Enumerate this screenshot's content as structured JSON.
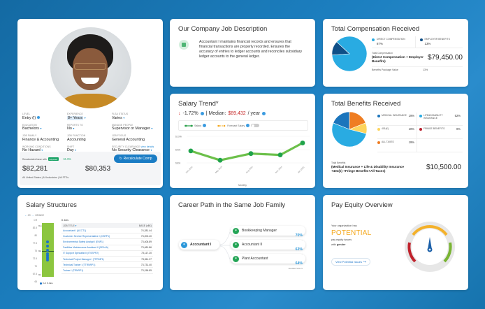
{
  "profile": {
    "fields": [
      {
        "label": "Level",
        "value": "Entry (I)",
        "has_info": true,
        "dropdown": false
      },
      {
        "label": "Experience",
        "value": "8+ Years",
        "highlight": true,
        "dropdown": true
      },
      {
        "label": "FLSA Status",
        "value": "Varies",
        "dropdown": true
      },
      {
        "label": "Education",
        "value": "Bachelors",
        "dropdown": true
      },
      {
        "label": "Reports To",
        "value": "No",
        "dropdown": true
      },
      {
        "label": "Manage People",
        "value": "Supervisor or Manager",
        "dropdown": true
      },
      {
        "label": "Job Family",
        "value": "Finance & Accounting",
        "dropdown": false
      },
      {
        "label": "Job Function",
        "value": "Accounting",
        "dropdown": false
      },
      {
        "label": "Job Focus",
        "value": "General Accounting",
        "dropdown": false
      },
      {
        "label": "Working Conditions",
        "value": "No Hazard",
        "dropdown": true
      },
      {
        "label": "Shift",
        "value": "Day",
        "dropdown": true
      },
      {
        "label": "Security Clearance",
        "label_link": "view details",
        "value": "No Security Clearance",
        "dropdown": true
      }
    ],
    "recalc_label": "Recalculated base with",
    "adjusted_badge": "Adjusted",
    "change_pct": "+2.4%",
    "recalc_button": "Recalculate Comp",
    "amount_primary": "$82,281",
    "amount_secondary": "$80,353",
    "scope": "All United States | All Industries | All FTEs"
  },
  "job_description": {
    "title": "Our Company Job Description",
    "icon": "document-icon",
    "text": "Accountant I maintains financial records and ensures that financial transactions are properly recorded. Ensures the accuracy of entries to ledger accounts and reconciles subsidiary ledger accounts to the general ledger."
  },
  "salary_trend": {
    "title": "Salary Trend*",
    "change": "-1.72%",
    "median_label": "| Median:",
    "median_value": "$89,432",
    "per": "/ year",
    "legend_salary": "Salary",
    "legend_forecast": "Forecast Salary",
    "y_ticks": [
      "$100k",
      "$90k",
      "$80k"
    ],
    "x_ticks": [
      "Feb 2024",
      "May 2024",
      "Aug 2024",
      "Nov 2024",
      "Jan 2025"
    ],
    "x_label": "Monthly"
  },
  "chart_data": [
    {
      "type": "line",
      "title": "Salary Trend*",
      "xlabel": "Monthly",
      "ylabel": "",
      "categories": [
        "Feb 2024",
        "May 2024",
        "Aug 2024",
        "Nov 2024",
        "Jan 2025"
      ],
      "series": [
        {
          "name": "Salary",
          "values": [
            89000,
            82000,
            87000,
            86000,
            95000
          ]
        }
      ],
      "ylim": [
        78000,
        100000
      ],
      "y_ticks": [
        "$80k",
        "$90k",
        "$100k"
      ],
      "legend": [
        "Salary",
        "Forecast Salary"
      ],
      "grid": true
    },
    {
      "type": "pie",
      "title": "Total Compensation Received",
      "categories": [
        "Direct Compensation",
        "Employer Benefits"
      ],
      "values": [
        87,
        13
      ],
      "colors": [
        "#29abe2",
        "#0f4f87"
      ]
    },
    {
      "type": "pie",
      "title": "Total Benefits Received",
      "categories": [
        "Medical Insurance",
        "Life&Disability Insurance",
        "401(K)",
        "Fringe Benefits",
        "All Taxes"
      ],
      "values": [
        19,
        52,
        10,
        0,
        19
      ],
      "colors": [
        "#1b75bc",
        "#29abe2",
        "#fdd45c",
        "#b81f2c",
        "#ef7d22"
      ]
    }
  ],
  "total_comp": {
    "title": "Total Compensation Received",
    "items": [
      {
        "label": "Direct Compensation",
        "pct": "87%",
        "color": "#29abe2"
      },
      {
        "label": "Employer Benefits",
        "pct": "13%",
        "color": "#0f4f87"
      }
    ],
    "total_small": "Total Compensation",
    "total_label": "(Direct Compensation + Employer Benefits)",
    "total_value": "$79,450.00",
    "bpv_label": "Benefits Package Value",
    "bpv_value": "13%"
  },
  "benefits": {
    "title": "Total Benefits Received",
    "items": [
      {
        "label": "Medical Insurance",
        "pct": "19%",
        "color": "#1b75bc"
      },
      {
        "label": "Life&Disability Insurance",
        "pct": "52%",
        "color": "#29abe2"
      },
      {
        "label": "401(K)",
        "pct": "10%",
        "color": "#fdd45c"
      },
      {
        "label": "Fringe Benefits",
        "pct": "0%",
        "color": "#b81f2c"
      },
      {
        "label": "All Taxes",
        "pct": "19%",
        "color": "#ef7d22"
      }
    ],
    "total_small": "Total Benefits",
    "total_label": "(Medical Insurance + Life & Disability Insurance +401(k) +Fringe Benefits+All Taxes)",
    "total_value": "$10,500.00"
  },
  "salary_structures": {
    "title": "Salary Structures",
    "grade_nav": "29",
    "grade_label": "GRADE",
    "y_ticks": [
      "CR",
      "82.5",
      "80",
      "77.5",
      "75",
      "72.5",
      "70",
      "67.5",
      "65"
    ],
    "bar_labels": {
      "max": "Max",
      "mid": "Mid",
      "min": "Min"
    },
    "legend": "8 of 8 Jobs",
    "jobs_count": "8 Jobs",
    "col_title": "JOB TITLE",
    "col_value": "BASE (x$K)",
    "rows": [
      {
        "title": "Accountant I (ACCT1)",
        "value": "74,281.44"
      },
      {
        "title": "Customer Service Representative I (CSRP1)",
        "value": "73,200.40"
      },
      {
        "title": "Environmental Safety Analyst I (ENP1)",
        "value": "73,406.89"
      },
      {
        "title": "Facilities Maintenance Assistant II (SEALA)",
        "value": "73,481.86"
      },
      {
        "title": "IT Support Specialist II (ITSSPP2)",
        "value": "73,117.20"
      },
      {
        "title": "Technical Project Manager I (TPRMP1)",
        "value": "73,811.27"
      },
      {
        "title": "Technical Trainer I (TTRNRP1)",
        "value": "73,731.40"
      },
      {
        "title": "Trainer I (TRNRP1)",
        "value": "73,156.89"
      }
    ]
  },
  "career_path": {
    "title": "Career Path in the Same Job Family",
    "current": "Accountant I",
    "shared_label": "SHARED SKILLS",
    "paths": [
      {
        "title": "Bookkeeping Manager",
        "pct": "70%"
      },
      {
        "title": "Accountant II",
        "pct": "63%"
      },
      {
        "title": "Plant Accountant",
        "pct": "64%"
      }
    ]
  },
  "pay_equity": {
    "title": "Pay Equity Overview",
    "line1": "Your organization has",
    "status": "POTENTIAL",
    "line2": "pay equity issues",
    "line3_prefix": "with",
    "line3_bold": "gender",
    "link": "View Potential Issues"
  }
}
